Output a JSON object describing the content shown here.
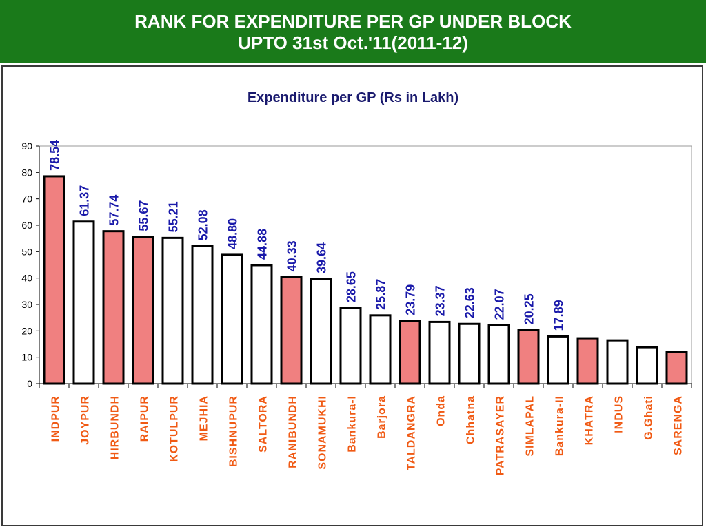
{
  "header": {
    "line1": "RANK FOR EXPENDITURE PER GP UNDER BLOCK",
    "line2": "UPTO  31st Oct.'11(2011-12)"
  },
  "colors": {
    "banner": "#1a7a1a",
    "highlight_bar": "#f08080",
    "plain_bar": "#ffffff",
    "data_label": "#1a1aaa",
    "category_label": "#f05a14",
    "title": "#1a1a6e"
  },
  "chart_data": {
    "type": "bar",
    "title": "Expenditure per GP (Rs in Lakh)",
    "xlabel": "",
    "ylabel": "",
    "ylim": [
      0,
      90
    ],
    "yticks": [
      0,
      10,
      20,
      30,
      40,
      50,
      60,
      70,
      80,
      90
    ],
    "grid": false,
    "legend": "none",
    "categories": [
      "INDPUR",
      "JOYPUR",
      "HIRBUNDH",
      "RAIPUR",
      "KOTULPUR",
      "MEJHIA",
      "BISHNUPUR",
      "SALTORA",
      "RANIBUNDH",
      "SONAMUKHI",
      "Bankura-I",
      "Barjora",
      "TALDANGRA",
      "Onda",
      "Chhatna",
      "PATRASAYER",
      "SIMLAPAL",
      "Bankura-II",
      "KHATRA",
      "INDUS",
      "G.Ghati",
      "SARENGA"
    ],
    "values": [
      78.54,
      61.37,
      57.74,
      55.67,
      55.21,
      52.08,
      48.8,
      44.88,
      40.33,
      39.64,
      28.65,
      25.87,
      23.79,
      23.37,
      22.63,
      22.07,
      20.25,
      17.89,
      17.2,
      16.4,
      13.8,
      12.0
    ],
    "data_labels": [
      "78.54",
      "61.37",
      "57.74",
      "55.67",
      "55.21",
      "52.08",
      "48.80",
      "44.88",
      "40.33",
      "39.64",
      "28.65",
      "25.87",
      "23.79",
      "23.37",
      "22.63",
      "22.07",
      "20.25",
      "17.89",
      "",
      "",
      "",
      ""
    ],
    "highlighted": [
      true,
      false,
      true,
      true,
      false,
      false,
      false,
      false,
      true,
      false,
      false,
      false,
      true,
      false,
      false,
      false,
      true,
      false,
      true,
      false,
      false,
      true
    ]
  }
}
